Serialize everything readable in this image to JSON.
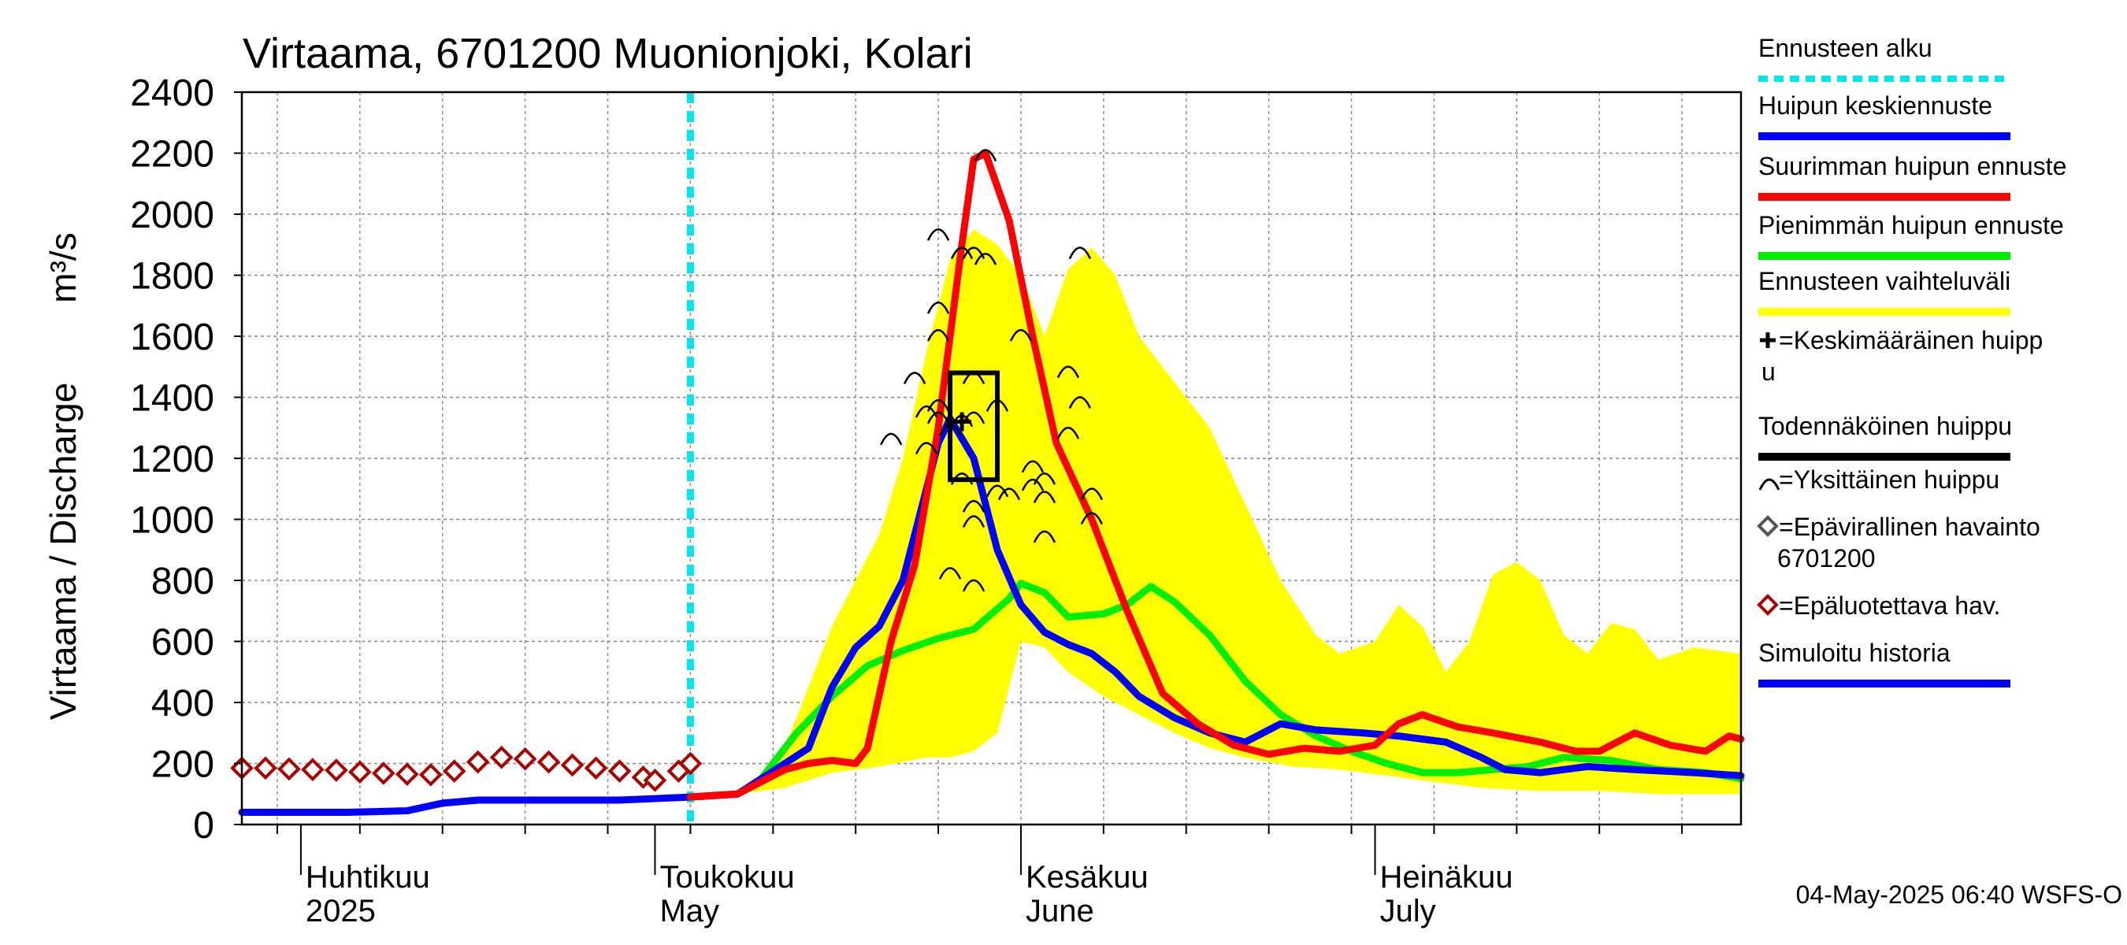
{
  "chart_data": {
    "type": "line",
    "title": "Virtaama, 6701200 Muonionjoki, Kolari",
    "ylabel": "Virtaama / Discharge",
    "yunit": "m³/s",
    "ylim": [
      0,
      2400
    ],
    "yticks": [
      0,
      200,
      400,
      600,
      800,
      1000,
      1200,
      1400,
      1600,
      1800,
      2000,
      2200,
      2400
    ],
    "xlim": [
      "2025-03-27",
      "2025-08-01"
    ],
    "grid": true,
    "legend_position": "right",
    "month_labels": [
      {
        "date": "2025-04-01",
        "fi": "Huhtikuu",
        "en": "2025"
      },
      {
        "date": "2025-05-01",
        "fi": "Toukokuu",
        "en": "May"
      },
      {
        "date": "2025-06-01",
        "fi": "Kesäkuu",
        "en": "June"
      },
      {
        "date": "2025-07-01",
        "fi": "Heinäkuu",
        "en": "July"
      }
    ],
    "forecast_start": "2025-05-04",
    "timestamp": "04-May-2025 06:40 WSFS-O",
    "legend": [
      {
        "label": "Ennusteen alku",
        "color": "#00e5ee",
        "style": "dashed"
      },
      {
        "label": "Huipun keskiennuste",
        "color": "#0000ff",
        "style": "line"
      },
      {
        "label": "Suurimman huipun ennuste",
        "color": "#ff0000",
        "style": "line"
      },
      {
        "label": "Pienimmän huipun ennuste",
        "color": "#00ee00",
        "style": "line"
      },
      {
        "label": "Ennusteen vaihteluväli",
        "color": "#ffff00",
        "style": "line"
      },
      {
        "label": "=Keskimääräinen huipp",
        "label2": "u",
        "color": "#000000",
        "style": "plus"
      },
      {
        "label": "Todennäköinen huippu",
        "color": "#000000",
        "style": "line"
      },
      {
        "label": "=Yksittäinen huippu",
        "color": "#000000",
        "style": "arc"
      },
      {
        "label": "=Epävirallinen havainto",
        "label2": "6701200",
        "color": "#555555",
        "style": "diamond"
      },
      {
        "label": "=Epäluotettava hav.",
        "color": "#aa0000",
        "style": "diamond"
      },
      {
        "label": "Simuloitu historia",
        "color": "#0000ff",
        "style": "line"
      }
    ],
    "series": [
      {
        "name": "Ennusteen vaihteluväli",
        "color": "#ffff00",
        "kind": "band",
        "upper": [
          [
            "2025-05-04",
            90
          ],
          [
            "2025-05-08",
            100
          ],
          [
            "2025-05-10",
            140
          ],
          [
            "2025-05-12",
            250
          ],
          [
            "2025-05-14",
            450
          ],
          [
            "2025-05-16",
            650
          ],
          [
            "2025-05-18",
            800
          ],
          [
            "2025-05-20",
            950
          ],
          [
            "2025-05-22",
            1200
          ],
          [
            "2025-05-24",
            1550
          ],
          [
            "2025-05-26",
            1850
          ],
          [
            "2025-05-28",
            1950
          ],
          [
            "2025-05-30",
            1900
          ],
          [
            "2025-06-01",
            1800
          ],
          [
            "2025-06-03",
            1600
          ],
          [
            "2025-06-05",
            1820
          ],
          [
            "2025-06-07",
            1890
          ],
          [
            "2025-06-09",
            1800
          ],
          [
            "2025-06-11",
            1600
          ],
          [
            "2025-06-14",
            1450
          ],
          [
            "2025-06-17",
            1300
          ],
          [
            "2025-06-20",
            1050
          ],
          [
            "2025-06-23",
            800
          ],
          [
            "2025-06-26",
            620
          ],
          [
            "2025-06-28",
            560
          ],
          [
            "2025-07-01",
            600
          ],
          [
            "2025-07-03",
            720
          ],
          [
            "2025-07-05",
            650
          ],
          [
            "2025-07-07",
            500
          ],
          [
            "2025-07-09",
            600
          ],
          [
            "2025-07-11",
            820
          ],
          [
            "2025-07-13",
            860
          ],
          [
            "2025-07-15",
            800
          ],
          [
            "2025-07-17",
            620
          ],
          [
            "2025-07-19",
            560
          ],
          [
            "2025-07-21",
            660
          ],
          [
            "2025-07-23",
            640
          ],
          [
            "2025-07-25",
            540
          ],
          [
            "2025-07-28",
            580
          ],
          [
            "2025-08-01",
            560
          ]
        ],
        "lower": [
          [
            "2025-05-04",
            90
          ],
          [
            "2025-05-08",
            100
          ],
          [
            "2025-05-12",
            120
          ],
          [
            "2025-05-16",
            170
          ],
          [
            "2025-05-20",
            190
          ],
          [
            "2025-05-24",
            220
          ],
          [
            "2025-05-26",
            220
          ],
          [
            "2025-05-28",
            240
          ],
          [
            "2025-05-30",
            300
          ],
          [
            "2025-06-01",
            600
          ],
          [
            "2025-06-03",
            580
          ],
          [
            "2025-06-05",
            500
          ],
          [
            "2025-06-08",
            420
          ],
          [
            "2025-06-11",
            360
          ],
          [
            "2025-06-14",
            300
          ],
          [
            "2025-06-17",
            250
          ],
          [
            "2025-06-20",
            220
          ],
          [
            "2025-06-24",
            190
          ],
          [
            "2025-06-28",
            180
          ],
          [
            "2025-07-02",
            160
          ],
          [
            "2025-07-06",
            140
          ],
          [
            "2025-07-10",
            120
          ],
          [
            "2025-07-15",
            110
          ],
          [
            "2025-07-20",
            110
          ],
          [
            "2025-07-25",
            100
          ],
          [
            "2025-08-01",
            100
          ]
        ]
      },
      {
        "name": "Simuloitu historia",
        "color": "#0000ff",
        "kind": "line",
        "points": [
          [
            "2025-03-27",
            40
          ],
          [
            "2025-04-05",
            40
          ],
          [
            "2025-04-10",
            45
          ],
          [
            "2025-04-13",
            70
          ],
          [
            "2025-04-16",
            80
          ],
          [
            "2025-04-22",
            80
          ],
          [
            "2025-04-28",
            80
          ],
          [
            "2025-05-01",
            85
          ],
          [
            "2025-05-04",
            90
          ]
        ]
      },
      {
        "name": "Huipun keskiennuste",
        "color": "#0000ff",
        "kind": "line",
        "points": [
          [
            "2025-05-04",
            90
          ],
          [
            "2025-05-08",
            100
          ],
          [
            "2025-05-10",
            150
          ],
          [
            "2025-05-12",
            200
          ],
          [
            "2025-05-14",
            250
          ],
          [
            "2025-05-16",
            450
          ],
          [
            "2025-05-18",
            580
          ],
          [
            "2025-05-20",
            650
          ],
          [
            "2025-05-22",
            800
          ],
          [
            "2025-05-24",
            1100
          ],
          [
            "2025-05-25",
            1250
          ],
          [
            "2025-05-26",
            1330
          ],
          [
            "2025-05-28",
            1200
          ],
          [
            "2025-05-30",
            900
          ],
          [
            "2025-06-01",
            720
          ],
          [
            "2025-06-03",
            630
          ],
          [
            "2025-06-05",
            590
          ],
          [
            "2025-06-07",
            560
          ],
          [
            "2025-06-09",
            500
          ],
          [
            "2025-06-11",
            420
          ],
          [
            "2025-06-14",
            350
          ],
          [
            "2025-06-17",
            300
          ],
          [
            "2025-06-20",
            270
          ],
          [
            "2025-06-23",
            330
          ],
          [
            "2025-06-26",
            310
          ],
          [
            "2025-06-30",
            300
          ],
          [
            "2025-07-03",
            290
          ],
          [
            "2025-07-07",
            270
          ],
          [
            "2025-07-10",
            220
          ],
          [
            "2025-07-12",
            180
          ],
          [
            "2025-07-15",
            170
          ],
          [
            "2025-07-19",
            190
          ],
          [
            "2025-07-23",
            180
          ],
          [
            "2025-07-28",
            170
          ],
          [
            "2025-08-01",
            160
          ]
        ]
      },
      {
        "name": "Suurimman huipun ennuste",
        "color": "#ff0000",
        "kind": "line",
        "points": [
          [
            "2025-05-04",
            90
          ],
          [
            "2025-05-08",
            100
          ],
          [
            "2025-05-10",
            140
          ],
          [
            "2025-05-12",
            180
          ],
          [
            "2025-05-14",
            200
          ],
          [
            "2025-05-16",
            210
          ],
          [
            "2025-05-18",
            200
          ],
          [
            "2025-05-19",
            250
          ],
          [
            "2025-05-21",
            600
          ],
          [
            "2025-05-23",
            850
          ],
          [
            "2025-05-25",
            1300
          ],
          [
            "2025-05-27",
            1900
          ],
          [
            "2025-05-28",
            2180
          ],
          [
            "2025-05-29",
            2200
          ],
          [
            "2025-05-31",
            1980
          ],
          [
            "2025-06-02",
            1600
          ],
          [
            "2025-06-04",
            1250
          ],
          [
            "2025-06-07",
            1000
          ],
          [
            "2025-06-10",
            700
          ],
          [
            "2025-06-13",
            430
          ],
          [
            "2025-06-16",
            330
          ],
          [
            "2025-06-19",
            260
          ],
          [
            "2025-06-22",
            230
          ],
          [
            "2025-06-25",
            250
          ],
          [
            "2025-06-28",
            240
          ],
          [
            "2025-07-01",
            260
          ],
          [
            "2025-07-03",
            330
          ],
          [
            "2025-07-05",
            360
          ],
          [
            "2025-07-08",
            320
          ],
          [
            "2025-07-11",
            300
          ],
          [
            "2025-07-15",
            270
          ],
          [
            "2025-07-18",
            240
          ],
          [
            "2025-07-20",
            240
          ],
          [
            "2025-07-23",
            300
          ],
          [
            "2025-07-26",
            260
          ],
          [
            "2025-07-29",
            240
          ],
          [
            "2025-07-31",
            290
          ],
          [
            "2025-08-01",
            280
          ]
        ]
      },
      {
        "name": "Pienimmän huipun ennuste",
        "color": "#00ee00",
        "kind": "line",
        "points": [
          [
            "2025-05-04",
            90
          ],
          [
            "2025-05-08",
            100
          ],
          [
            "2025-05-10",
            150
          ],
          [
            "2025-05-13",
            300
          ],
          [
            "2025-05-16",
            420
          ],
          [
            "2025-05-19",
            520
          ],
          [
            "2025-05-22",
            570
          ],
          [
            "2025-05-25",
            610
          ],
          [
            "2025-05-28",
            640
          ],
          [
            "2025-05-31",
            740
          ],
          [
            "2025-06-01",
            790
          ],
          [
            "2025-06-03",
            760
          ],
          [
            "2025-06-05",
            680
          ],
          [
            "2025-06-08",
            690
          ],
          [
            "2025-06-10",
            720
          ],
          [
            "2025-06-12",
            780
          ],
          [
            "2025-06-14",
            730
          ],
          [
            "2025-06-17",
            620
          ],
          [
            "2025-06-20",
            470
          ],
          [
            "2025-06-23",
            360
          ],
          [
            "2025-06-26",
            290
          ],
          [
            "2025-06-29",
            240
          ],
          [
            "2025-07-02",
            200
          ],
          [
            "2025-07-05",
            170
          ],
          [
            "2025-07-08",
            170
          ],
          [
            "2025-07-11",
            180
          ],
          [
            "2025-07-14",
            190
          ],
          [
            "2025-07-17",
            220
          ],
          [
            "2025-07-21",
            210
          ],
          [
            "2025-07-25",
            180
          ],
          [
            "2025-07-29",
            170
          ],
          [
            "2025-08-01",
            150
          ]
        ]
      }
    ],
    "observations_unreliable": [
      [
        "2025-03-27",
        185
      ],
      [
        "2025-03-29",
        185
      ],
      [
        "2025-03-31",
        182
      ],
      [
        "2025-04-02",
        180
      ],
      [
        "2025-04-04",
        178
      ],
      [
        "2025-04-06",
        172
      ],
      [
        "2025-04-08",
        168
      ],
      [
        "2025-04-10",
        165
      ],
      [
        "2025-04-12",
        163
      ],
      [
        "2025-04-14",
        175
      ],
      [
        "2025-04-16",
        205
      ],
      [
        "2025-04-18",
        220
      ],
      [
        "2025-04-20",
        215
      ],
      [
        "2025-04-22",
        205
      ],
      [
        "2025-04-24",
        195
      ],
      [
        "2025-04-26",
        185
      ],
      [
        "2025-04-28",
        175
      ],
      [
        "2025-04-30",
        155
      ],
      [
        "2025-05-01",
        145
      ],
      [
        "2025-05-03",
        175
      ],
      [
        "2025-05-04",
        200
      ]
    ],
    "mean_peak": {
      "date": "2025-05-27",
      "value": 1320
    },
    "probable_peak_box": {
      "date_from": "2025-05-26",
      "date_to": "2025-05-30",
      "low": 1130,
      "high": 1480
    },
    "individual_peaks": [
      [
        "2025-05-21",
        1270
      ],
      [
        "2025-05-23",
        1470
      ],
      [
        "2025-05-24",
        1360
      ],
      [
        "2025-05-24",
        1240
      ],
      [
        "2025-05-25",
        1940
      ],
      [
        "2025-05-25",
        1700
      ],
      [
        "2025-05-25",
        1610
      ],
      [
        "2025-05-25",
        1380
      ],
      [
        "2025-05-25",
        1340
      ],
      [
        "2025-05-26",
        1300
      ],
      [
        "2025-05-26",
        830
      ],
      [
        "2025-05-27",
        1880
      ],
      [
        "2025-05-27",
        1330
      ],
      [
        "2025-05-27",
        1140
      ],
      [
        "2025-05-28",
        1880
      ],
      [
        "2025-05-28",
        1470
      ],
      [
        "2025-05-28",
        1340
      ],
      [
        "2025-05-28",
        1050
      ],
      [
        "2025-05-28",
        1000
      ],
      [
        "2025-05-28",
        790
      ],
      [
        "2025-05-29",
        1860
      ],
      [
        "2025-05-29",
        2200
      ],
      [
        "2025-05-30",
        1380
      ],
      [
        "2025-05-30",
        1100
      ],
      [
        "2025-05-31",
        1090
      ],
      [
        "2025-06-01",
        1610
      ],
      [
        "2025-06-02",
        1180
      ],
      [
        "2025-06-02",
        1120
      ],
      [
        "2025-06-03",
        1140
      ],
      [
        "2025-06-03",
        1080
      ],
      [
        "2025-06-03",
        950
      ],
      [
        "2025-06-05",
        1490
      ],
      [
        "2025-06-05",
        1290
      ],
      [
        "2025-06-06",
        1880
      ],
      [
        "2025-06-06",
        1390
      ],
      [
        "2025-06-07",
        1090
      ],
      [
        "2025-06-07",
        1010
      ]
    ]
  }
}
